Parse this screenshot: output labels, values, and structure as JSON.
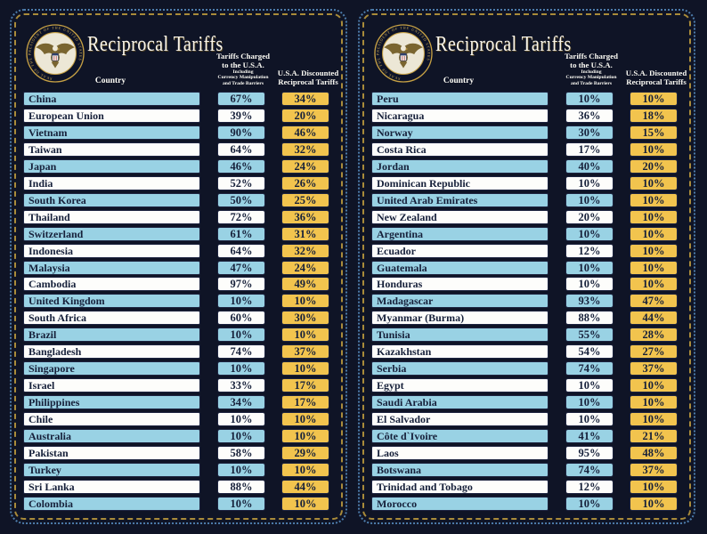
{
  "header": {
    "title": "Reciprocal Tariffs",
    "country_label": "Country",
    "charged_line1": "Tariffs Charged",
    "charged_line2": "to the U.S.A.",
    "charged_sub1": "Including",
    "charged_sub2": "Currency Manipulation",
    "charged_sub3": "and Trade Barriers",
    "discounted_line1": "U.S.A. Discounted",
    "discounted_line2": "Reciprocal Tariffs",
    "seal_text": "SEAL OF THE PRESIDENT OF THE UNITED STATES"
  },
  "colors": {
    "page_background": "#0f1426",
    "row_blue": "#99d2e4",
    "row_white": "#fdfdfb",
    "discount_gold": "#f2c44e",
    "outer_border_blue": "#4d7cab",
    "inner_border_gold": "#a98b3a",
    "cell_text_navy": "#16203a",
    "header_text": "#fdfcf5"
  },
  "chart_data": {
    "type": "table",
    "title": "Reciprocal Tariffs",
    "columns": [
      "Country",
      "Tariffs Charged to the U.S.A. Including Currency Manipulation and Trade Barriers",
      "U.S.A. Discounted Reciprocal Tariffs"
    ],
    "panels": [
      {
        "rows": [
          [
            "China",
            "67%",
            "34%"
          ],
          [
            "European Union",
            "39%",
            "20%"
          ],
          [
            "Vietnam",
            "90%",
            "46%"
          ],
          [
            "Taiwan",
            "64%",
            "32%"
          ],
          [
            "Japan",
            "46%",
            "24%"
          ],
          [
            "India",
            "52%",
            "26%"
          ],
          [
            "South Korea",
            "50%",
            "25%"
          ],
          [
            "Thailand",
            "72%",
            "36%"
          ],
          [
            "Switzerland",
            "61%",
            "31%"
          ],
          [
            "Indonesia",
            "64%",
            "32%"
          ],
          [
            "Malaysia",
            "47%",
            "24%"
          ],
          [
            "Cambodia",
            "97%",
            "49%"
          ],
          [
            "United Kingdom",
            "10%",
            "10%"
          ],
          [
            "South Africa",
            "60%",
            "30%"
          ],
          [
            "Brazil",
            "10%",
            "10%"
          ],
          [
            "Bangladesh",
            "74%",
            "37%"
          ],
          [
            "Singapore",
            "10%",
            "10%"
          ],
          [
            "Israel",
            "33%",
            "17%"
          ],
          [
            "Philippines",
            "34%",
            "17%"
          ],
          [
            "Chile",
            "10%",
            "10%"
          ],
          [
            "Australia",
            "10%",
            "10%"
          ],
          [
            "Pakistan",
            "58%",
            "29%"
          ],
          [
            "Turkey",
            "10%",
            "10%"
          ],
          [
            "Sri Lanka",
            "88%",
            "44%"
          ],
          [
            "Colombia",
            "10%",
            "10%"
          ]
        ]
      },
      {
        "rows": [
          [
            "Peru",
            "10%",
            "10%"
          ],
          [
            "Nicaragua",
            "36%",
            "18%"
          ],
          [
            "Norway",
            "30%",
            "15%"
          ],
          [
            "Costa Rica",
            "17%",
            "10%"
          ],
          [
            "Jordan",
            "40%",
            "20%"
          ],
          [
            "Dominican Republic",
            "10%",
            "10%"
          ],
          [
            "United Arab Emirates",
            "10%",
            "10%"
          ],
          [
            "New Zealand",
            "20%",
            "10%"
          ],
          [
            "Argentina",
            "10%",
            "10%"
          ],
          [
            "Ecuador",
            "12%",
            "10%"
          ],
          [
            "Guatemala",
            "10%",
            "10%"
          ],
          [
            "Honduras",
            "10%",
            "10%"
          ],
          [
            "Madagascar",
            "93%",
            "47%"
          ],
          [
            "Myanmar (Burma)",
            "88%",
            "44%"
          ],
          [
            "Tunisia",
            "55%",
            "28%"
          ],
          [
            "Kazakhstan",
            "54%",
            "27%"
          ],
          [
            "Serbia",
            "74%",
            "37%"
          ],
          [
            "Egypt",
            "10%",
            "10%"
          ],
          [
            "Saudi Arabia",
            "10%",
            "10%"
          ],
          [
            "El Salvador",
            "10%",
            "10%"
          ],
          [
            "Côte d`Ivoire",
            "41%",
            "21%"
          ],
          [
            "Laos",
            "95%",
            "48%"
          ],
          [
            "Botswana",
            "74%",
            "37%"
          ],
          [
            "Trinidad and Tobago",
            "12%",
            "10%"
          ],
          [
            "Morocco",
            "10%",
            "10%"
          ]
        ]
      }
    ]
  }
}
